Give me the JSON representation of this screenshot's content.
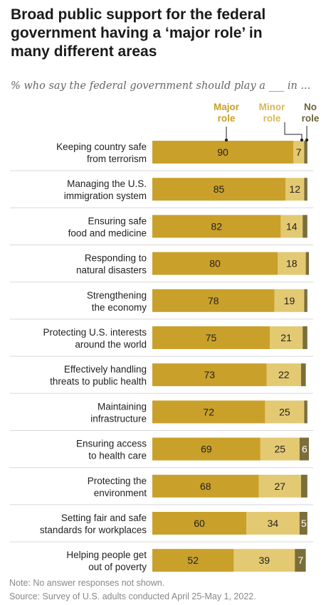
{
  "title_lines": [
    "Broad public support for the federal",
    "government having a ‘major role’ in",
    "many different areas"
  ],
  "subtitle": "% who say the federal government should play a ___ in ...",
  "colors": {
    "major": "#c9a02a",
    "minor": "#e3c972",
    "none": "#7a6e3a",
    "divider": "#d8d8d8",
    "legend_minor": "#d8b85a",
    "legend_none": "#6e6438"
  },
  "chart_data": {
    "type": "bar",
    "orientation": "horizontal",
    "stacked": true,
    "categories": [
      [
        "Keeping country safe",
        "from terrorism"
      ],
      [
        "Managing the U.S.",
        "immigration system"
      ],
      [
        "Ensuring safe",
        "food and medicine"
      ],
      [
        "Responding to",
        "natural disasters"
      ],
      [
        "Strengthening",
        "the economy"
      ],
      [
        "Protecting U.S. interests",
        "around the world"
      ],
      [
        "Effectively handling",
        "threats to public health"
      ],
      [
        "Maintaining",
        "infrastructure"
      ],
      [
        "Ensuring access",
        "to health care"
      ],
      [
        "Protecting the",
        "environment"
      ],
      [
        "Setting fair and safe",
        "standards for workplaces"
      ],
      [
        "Helping people get",
        "out of poverty"
      ]
    ],
    "series": [
      {
        "name": "Major role",
        "label_lines": [
          "Major",
          "role"
        ],
        "values": [
          90,
          85,
          82,
          80,
          78,
          75,
          73,
          72,
          69,
          68,
          60,
          52
        ]
      },
      {
        "name": "Minor role",
        "label_lines": [
          "Minor",
          "role"
        ],
        "values": [
          7,
          12,
          14,
          18,
          19,
          21,
          22,
          25,
          25,
          27,
          34,
          39
        ]
      },
      {
        "name": "No role",
        "label_lines": [
          "No",
          "role"
        ],
        "values": [
          2,
          2,
          3,
          2,
          2,
          3,
          3,
          2,
          6,
          4,
          5,
          7
        ]
      }
    ],
    "value_labels": [
      [
        "90",
        "7",
        ""
      ],
      [
        "85",
        "12",
        ""
      ],
      [
        "82",
        "14",
        ""
      ],
      [
        "80",
        "18",
        ""
      ],
      [
        "78",
        "19",
        ""
      ],
      [
        "75",
        "21",
        ""
      ],
      [
        "73",
        "22",
        ""
      ],
      [
        "72",
        "25",
        ""
      ],
      [
        "69",
        "25",
        "6"
      ],
      [
        "68",
        "27",
        ""
      ],
      [
        "60",
        "34",
        "5"
      ],
      [
        "52",
        "39",
        "7"
      ]
    ],
    "xlim": [
      0,
      100
    ]
  },
  "note": "Note: No answer responses not shown.",
  "source": "Source: Survey of U.S. adults conducted April 25-May 1, 2022."
}
